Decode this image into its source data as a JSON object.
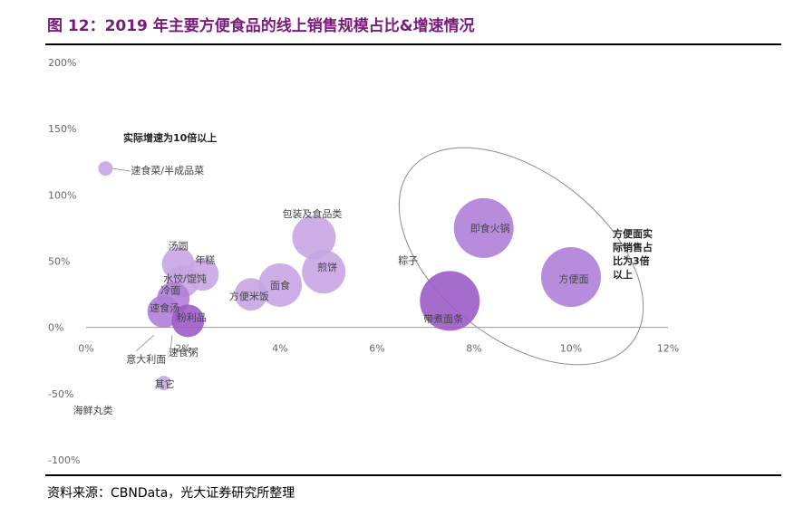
{
  "header": {
    "title": "图 12：2019 年主要方便食品的线上销售规模占比&增速情况"
  },
  "footer": {
    "source": "资料来源：CBNData，光大证券研究所整理"
  },
  "colors": {
    "title": "#7a1a7d",
    "bubble_light": "#c8a5e3",
    "bubble_medium": "#b07fd9",
    "bubble_dark": "#9b5bc8",
    "axis_text": "#666666",
    "label_text": "#444444"
  },
  "chart_data": {
    "type": "scatter",
    "subtype": "bubble",
    "title": "",
    "xlabel": "",
    "ylabel": "",
    "xlim": [
      0,
      12
    ],
    "ylim": [
      -100,
      200
    ],
    "x_ticks": [
      0,
      2,
      4,
      6,
      8,
      10,
      12
    ],
    "x_tick_labels": [
      "0%",
      "2%",
      "4%",
      "6%",
      "8%",
      "10%",
      "12%"
    ],
    "y_ticks": [
      200,
      150,
      100,
      50,
      0,
      -50,
      -100
    ],
    "y_tick_labels": [
      "200%",
      "150%",
      "100%",
      "50%",
      "0%",
      "-50%",
      "-100%"
    ],
    "grid": false,
    "points": [
      {
        "label": "速食菜/半成品菜",
        "x": 0.4,
        "y": 120,
        "size": "small",
        "shade": "light"
      },
      {
        "label": "汤圆",
        "x": 1.9,
        "y": 48,
        "size": "medium",
        "shade": "light"
      },
      {
        "label": "年糕",
        "x": 2.4,
        "y": 40,
        "size": "medium",
        "shade": "light"
      },
      {
        "label": "水饺/馄饨",
        "x": 2.0,
        "y": 35,
        "size": "medium",
        "shade": "light"
      },
      {
        "label": "冷面",
        "x": 1.8,
        "y": 22,
        "size": "medium",
        "shade": "medium"
      },
      {
        "label": "速食汤",
        "x": 1.6,
        "y": 12,
        "size": "medium",
        "shade": "medium"
      },
      {
        "label": "粉利品",
        "x": 2.1,
        "y": 5,
        "size": "medium",
        "shade": "dark"
      },
      {
        "label": "意大利面",
        "x": 1.8,
        "y": 5,
        "size": "small",
        "shade": "light"
      },
      {
        "label": "速食粥",
        "x": 1.8,
        "y": 10,
        "size": "small",
        "shade": "light"
      },
      {
        "label": "其它",
        "x": 1.6,
        "y": -42,
        "size": "small",
        "shade": "light"
      },
      {
        "label": "海鲜丸类",
        "x": 1.6,
        "y": -42,
        "size": "small",
        "shade": "light"
      },
      {
        "label": "方便米饭",
        "x": 3.4,
        "y": 25,
        "size": "medium",
        "shade": "light"
      },
      {
        "label": "面食",
        "x": 4.0,
        "y": 32,
        "size": "large",
        "shade": "light"
      },
      {
        "label": "包装及食品类",
        "x": 4.7,
        "y": 68,
        "size": "large",
        "shade": "light"
      },
      {
        "label": "煎饼",
        "x": 4.9,
        "y": 42,
        "size": "large",
        "shade": "light"
      },
      {
        "label": "粽子",
        "x": 7.5,
        "y": 20,
        "size": "xlarge",
        "shade": "dark"
      },
      {
        "label": "带煮面条",
        "x": 7.5,
        "y": 10,
        "size": "xlarge",
        "shade": "dark"
      },
      {
        "label": "即食火锅",
        "x": 8.2,
        "y": 75,
        "size": "xlarge",
        "shade": "medium"
      },
      {
        "label": "方便面",
        "x": 10.0,
        "y": 38,
        "size": "xlarge",
        "shade": "medium"
      }
    ],
    "annotations": [
      {
        "text": "实际增速为10倍以上"
      },
      {
        "text": "方便面实际销售占比为3倍以上"
      }
    ]
  }
}
